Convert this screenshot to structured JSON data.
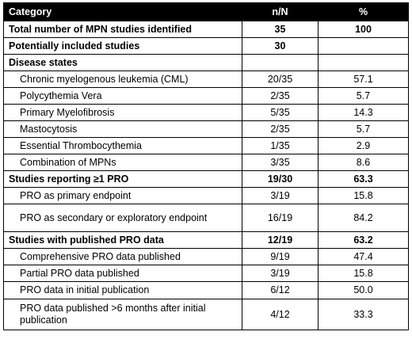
{
  "table": {
    "headers": [
      "Category",
      "n/N",
      "%"
    ],
    "rows": [
      {
        "label": "Total number of MPN studies identified",
        "n": "35",
        "pct": "100",
        "bold": true
      },
      {
        "label": "Potentially included studies",
        "n": "30",
        "pct": "",
        "bold": true
      },
      {
        "label": "Disease states",
        "n": "",
        "pct": "",
        "bold": true
      },
      {
        "label": "Chronic myelogenous leukemia (CML)",
        "n": "20/35",
        "pct": "57.1",
        "bold": false
      },
      {
        "label": "Polycythemia Vera",
        "n": "2/35",
        "pct": "5.7",
        "bold": false
      },
      {
        "label": "Primary Myelofibrosis",
        "n": "5/35",
        "pct": "14.3",
        "bold": false
      },
      {
        "label": "Mastocytosis",
        "n": "2/35",
        "pct": "5.7",
        "bold": false
      },
      {
        "label": "Essential Thrombocythemia",
        "n": "1/35",
        "pct": "2.9",
        "bold": false
      },
      {
        "label": "Combination of MPNs",
        "n": "3/35",
        "pct": "8.6",
        "bold": false
      },
      {
        "label": "Studies reporting ≥1 PRO",
        "n": "19/30",
        "pct": "63.3",
        "bold": true
      },
      {
        "label": "PRO as primary endpoint",
        "n": "3/19",
        "pct": "15.8",
        "bold": false
      },
      {
        "label": "PRO as secondary or exploratory endpoint",
        "n": "16/19",
        "pct": "84.2",
        "bold": false
      },
      {
        "label": "Studies with published PRO data",
        "n": "12/19",
        "pct": "63.2",
        "bold": true
      },
      {
        "label": "Comprehensive PRO data published",
        "n": "9/19",
        "pct": "47.4",
        "bold": false
      },
      {
        "label": "Partial PRO data published",
        "n": "3/19",
        "pct": "15.8",
        "bold": false
      },
      {
        "label": "PRO data in initial publication",
        "n": "6/12",
        "pct": "50.0",
        "bold": false
      },
      {
        "label": "PRO data published >6 months after initial publication",
        "n": "4/12",
        "pct": "33.3",
        "bold": false
      }
    ]
  }
}
